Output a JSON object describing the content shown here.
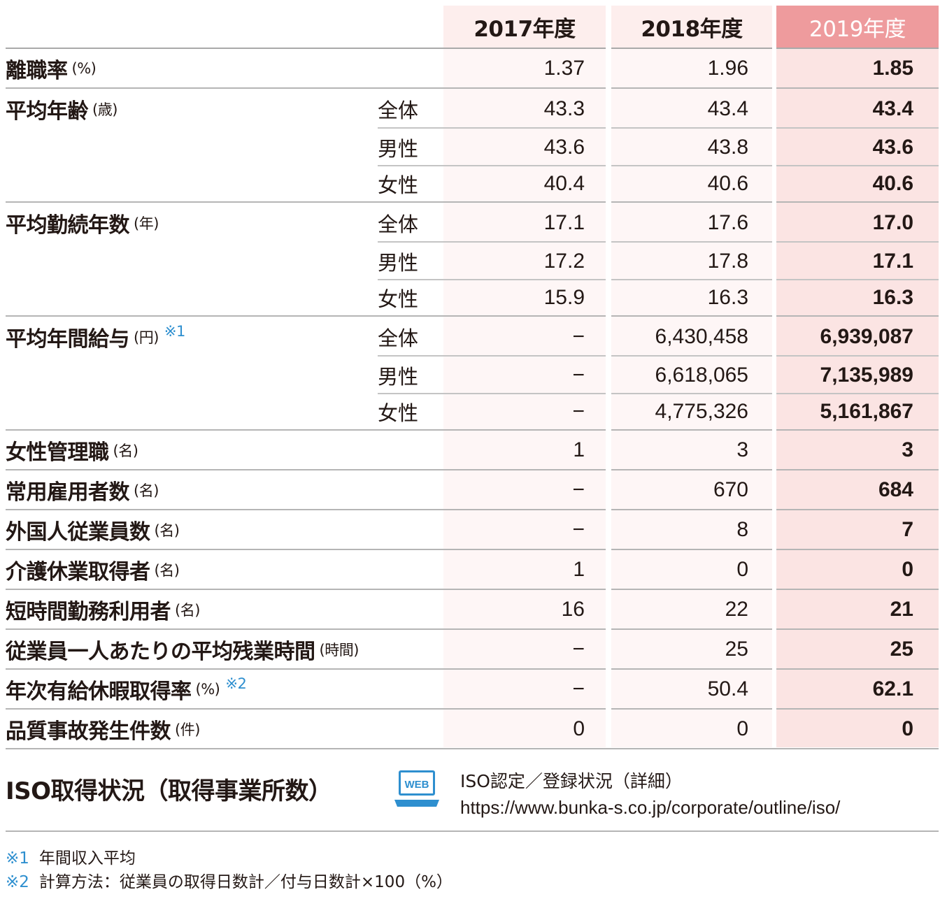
{
  "columns": [
    "2017年度",
    "2018年度",
    "2019年度"
  ],
  "rows": [
    {
      "label": "離職率",
      "unit": "(%)",
      "note": "",
      "sub": [
        {
          "name": "",
          "v": [
            "1.37",
            "1.96",
            "1.85"
          ]
        }
      ]
    },
    {
      "label": "平均年齢",
      "unit": "(歳)",
      "note": "",
      "sub": [
        {
          "name": "全体",
          "v": [
            "43.3",
            "43.4",
            "43.4"
          ]
        },
        {
          "name": "男性",
          "v": [
            "43.6",
            "43.8",
            "43.6"
          ]
        },
        {
          "name": "女性",
          "v": [
            "40.4",
            "40.6",
            "40.6"
          ]
        }
      ]
    },
    {
      "label": "平均勤続年数",
      "unit": "(年)",
      "note": "",
      "sub": [
        {
          "name": "全体",
          "v": [
            "17.1",
            "17.6",
            "17.0"
          ]
        },
        {
          "name": "男性",
          "v": [
            "17.2",
            "17.8",
            "17.1"
          ]
        },
        {
          "name": "女性",
          "v": [
            "15.9",
            "16.3",
            "16.3"
          ]
        }
      ]
    },
    {
      "label": "平均年間給与",
      "unit": "(円)",
      "note": "※1",
      "sub": [
        {
          "name": "全体",
          "v": [
            "−",
            "6,430,458",
            "6,939,087"
          ]
        },
        {
          "name": "男性",
          "v": [
            "−",
            "6,618,065",
            "7,135,989"
          ]
        },
        {
          "name": "女性",
          "v": [
            "−",
            "4,775,326",
            "5,161,867"
          ]
        }
      ]
    },
    {
      "label": "女性管理職",
      "unit": "(名)",
      "note": "",
      "sub": [
        {
          "name": "",
          "v": [
            "1",
            "3",
            "3"
          ]
        }
      ]
    },
    {
      "label": "常用雇用者数",
      "unit": "(名)",
      "note": "",
      "sub": [
        {
          "name": "",
          "v": [
            "−",
            "670",
            "684"
          ]
        }
      ]
    },
    {
      "label": "外国人従業員数",
      "unit": "(名)",
      "note": "",
      "sub": [
        {
          "name": "",
          "v": [
            "−",
            "8",
            "7"
          ]
        }
      ]
    },
    {
      "label": "介護休業取得者",
      "unit": "(名)",
      "note": "",
      "sub": [
        {
          "name": "",
          "v": [
            "1",
            "0",
            "0"
          ]
        }
      ]
    },
    {
      "label": "短時間勤務利用者",
      "unit": "(名)",
      "note": "",
      "sub": [
        {
          "name": "",
          "v": [
            "16",
            "22",
            "21"
          ]
        }
      ]
    },
    {
      "label": "従業員一人あたりの平均残業時間",
      "unit": "(時間)",
      "note": "",
      "sub": [
        {
          "name": "",
          "v": [
            "−",
            "25",
            "25"
          ]
        }
      ]
    },
    {
      "label": "年次有給休暇取得率",
      "unit": "(%)",
      "note": "※2",
      "sub": [
        {
          "name": "",
          "v": [
            "−",
            "50.4",
            "62.1"
          ]
        }
      ]
    },
    {
      "label": "品質事故発生件数",
      "unit": "(件)",
      "note": "",
      "sub": [
        {
          "name": "",
          "v": [
            "0",
            "0",
            "0"
          ]
        }
      ]
    }
  ],
  "iso": {
    "title": "ISO取得状況（取得事業所数）",
    "web_label": "WEB",
    "caption": "ISO認定／登録状況（詳細）",
    "url": "https://www.bunka-s.co.jp/corporate/outline/iso/"
  },
  "footnotes": [
    {
      "mark": "※1",
      "text": "年間収入平均"
    },
    {
      "mark": "※2",
      "text": "計算方法：従業員の取得日数計／付与日数計×100（%）"
    }
  ],
  "colors": {
    "header_2019": "#ee9b9d",
    "col_bg": "#fef6f6",
    "col_bg_2019": "#fbe4e3",
    "note_blue": "#2e8fcf"
  }
}
